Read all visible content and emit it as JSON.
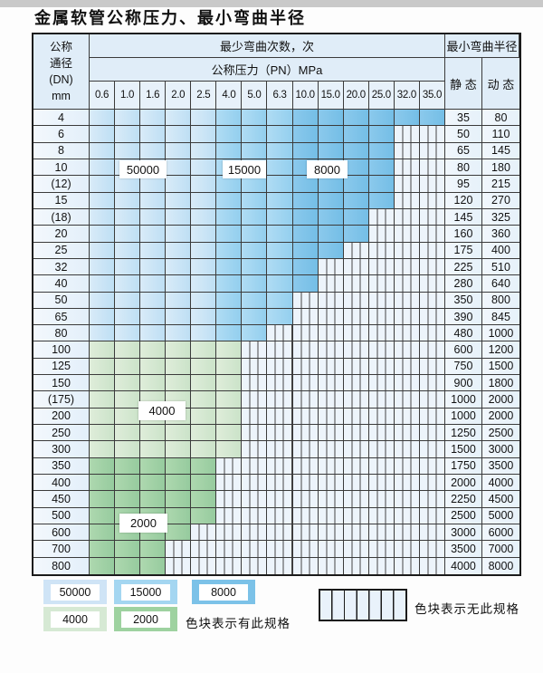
{
  "title": "金属软管公称压力、最小弯曲半径",
  "table": {
    "header": {
      "dn_label_lines": [
        "公称",
        "通径",
        "(DN)",
        "mm"
      ],
      "cycles_label": "最少弯曲次数，次",
      "pressure_label": "公称压力（PN）MPa",
      "radius_label": "最小弯曲半径",
      "static_label": "静 态",
      "dynamic_label": "动 态"
    }
  },
  "legend": {
    "has_spec_label": "色块表示有此规格",
    "no_spec_label": "色块表示无此规格",
    "items": [
      {
        "label": "50000",
        "color": "#cfe4f6"
      },
      {
        "label": "15000",
        "color": "#a4d6f1"
      },
      {
        "label": "8000",
        "color": "#7cc2e8"
      },
      {
        "label": "4000",
        "color": "#d6e9d4"
      },
      {
        "label": "2000",
        "color": "#9ed2a0"
      }
    ]
  },
  "chart_data": {
    "type": "table",
    "title": "金属软管公称压力、最小弯曲半径",
    "pressure_columns_mpa": [
      "0.6",
      "1.0",
      "1.6",
      "2.0",
      "2.5",
      "4.0",
      "5.0",
      "6.3",
      "10.0",
      "15.0",
      "20.0",
      "25.0",
      "32.0",
      "35.0"
    ],
    "cycle_zones": [
      {
        "cycles": "50000",
        "dn_range": "4-80",
        "pn_range": "0.6-2.5",
        "color": "#c6e2f5"
      },
      {
        "cycles": "15000",
        "dn_range": "4-80",
        "pn_range": "4.0-6.3",
        "color": "#a0d4f0"
      },
      {
        "cycles": "8000",
        "dn_range": "4-80",
        "pn_range": "10.0-35.0",
        "color": "#7fc4e9"
      },
      {
        "cycles": "4000",
        "dn_range": "100-300",
        "pn_range": "all colored",
        "color": "#d5e8d2"
      },
      {
        "cycles": "2000",
        "dn_range": "350-800",
        "pn_range": "all colored",
        "color": "#a3d2a6"
      }
    ],
    "rows": [
      {
        "dn": "4",
        "band": "blue",
        "max_pn": "35.0",
        "static": "35",
        "dynamic": "80"
      },
      {
        "dn": "6",
        "band": "blue",
        "max_pn": "25.0",
        "static": "50",
        "dynamic": "110"
      },
      {
        "dn": "8",
        "band": "blue",
        "max_pn": "25.0",
        "static": "65",
        "dynamic": "145"
      },
      {
        "dn": "10",
        "band": "blue",
        "max_pn": "25.0",
        "static": "80",
        "dynamic": "180"
      },
      {
        "dn": "(12)",
        "band": "blue",
        "max_pn": "25.0",
        "static": "95",
        "dynamic": "215"
      },
      {
        "dn": "15",
        "band": "blue",
        "max_pn": "25.0",
        "static": "120",
        "dynamic": "270"
      },
      {
        "dn": "(18)",
        "band": "blue",
        "max_pn": "20.0",
        "static": "145",
        "dynamic": "325"
      },
      {
        "dn": "20",
        "band": "blue",
        "max_pn": "20.0",
        "static": "160",
        "dynamic": "360"
      },
      {
        "dn": "25",
        "band": "blue",
        "max_pn": "15.0",
        "static": "175",
        "dynamic": "400"
      },
      {
        "dn": "32",
        "band": "blue",
        "max_pn": "10.0",
        "static": "225",
        "dynamic": "510"
      },
      {
        "dn": "40",
        "band": "blue",
        "max_pn": "10.0",
        "static": "280",
        "dynamic": "640"
      },
      {
        "dn": "50",
        "band": "blue",
        "max_pn": "6.3",
        "static": "350",
        "dynamic": "800"
      },
      {
        "dn": "65",
        "band": "blue",
        "max_pn": "6.3",
        "static": "390",
        "dynamic": "845"
      },
      {
        "dn": "80",
        "band": "blue",
        "max_pn": "5.0",
        "static": "480",
        "dynamic": "1000"
      },
      {
        "dn": "100",
        "band": "green-4000",
        "max_pn": "4.0",
        "static": "600",
        "dynamic": "1200"
      },
      {
        "dn": "125",
        "band": "green-4000",
        "max_pn": "4.0",
        "static": "750",
        "dynamic": "1500"
      },
      {
        "dn": "150",
        "band": "green-4000",
        "max_pn": "4.0",
        "static": "900",
        "dynamic": "1800"
      },
      {
        "dn": "(175)",
        "band": "green-4000",
        "max_pn": "4.0",
        "static": "1000",
        "dynamic": "2000"
      },
      {
        "dn": "200",
        "band": "green-4000",
        "max_pn": "4.0",
        "static": "1000",
        "dynamic": "2000"
      },
      {
        "dn": "250",
        "band": "green-4000",
        "max_pn": "4.0",
        "static": "1250",
        "dynamic": "2500"
      },
      {
        "dn": "300",
        "band": "green-4000",
        "max_pn": "4.0",
        "static": "1500",
        "dynamic": "3000"
      },
      {
        "dn": "350",
        "band": "green-2000",
        "max_pn": "2.5",
        "static": "1750",
        "dynamic": "3500"
      },
      {
        "dn": "400",
        "band": "green-2000",
        "max_pn": "2.5",
        "static": "2000",
        "dynamic": "4000"
      },
      {
        "dn": "450",
        "band": "green-2000",
        "max_pn": "2.5",
        "static": "2250",
        "dynamic": "4500"
      },
      {
        "dn": "500",
        "band": "green-2000",
        "max_pn": "2.5",
        "static": "2500",
        "dynamic": "5000"
      },
      {
        "dn": "600",
        "band": "green-2000",
        "max_pn": "2.0",
        "static": "3000",
        "dynamic": "6000"
      },
      {
        "dn": "700",
        "band": "green-2000",
        "max_pn": "1.6",
        "static": "3500",
        "dynamic": "7000"
      },
      {
        "dn": "800",
        "band": "green-2000",
        "max_pn": "1.6",
        "static": "4000",
        "dynamic": "8000"
      }
    ]
  }
}
